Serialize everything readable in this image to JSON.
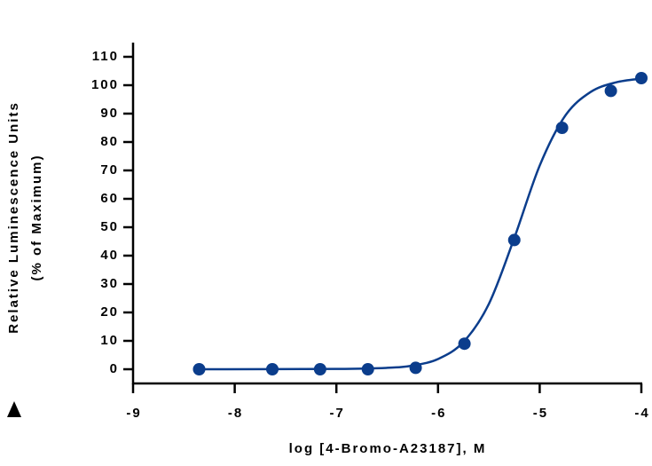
{
  "chart_data": {
    "type": "scatter",
    "x_label": "log [4-Bromo-A23187], M",
    "y_label": [
      "Relative Luminescence Units",
      "(% of Maximum)"
    ],
    "xlim": [
      -9,
      -4
    ],
    "xticks": [
      -9,
      -8,
      -7,
      -6,
      -5,
      -4
    ],
    "ylim": [
      -5,
      115
    ],
    "yticks": [
      0,
      10,
      20,
      30,
      40,
      50,
      60,
      70,
      80,
      90,
      100,
      110
    ],
    "series": [
      {
        "color": "#0b3d8c",
        "marker": true,
        "x": [
          -8.35,
          -7.63,
          -7.16,
          -6.69,
          -6.22,
          -5.74,
          -5.25,
          -4.78,
          -4.3,
          -4.0
        ],
        "values": [
          0,
          0,
          0,
          0,
          0.5,
          9,
          45.5,
          85,
          98,
          102.5
        ]
      },
      {
        "color": "#0b3d8c",
        "marker": false,
        "x": [
          -8.35,
          -7,
          -6.5,
          -6.25,
          -6.0,
          -5.75,
          -5.5,
          -5.25,
          -5.0,
          -4.75,
          -4.5,
          -4.25,
          -4.0
        ],
        "values": [
          0,
          0.1,
          0.5,
          1.3,
          3.6,
          9.6,
          23,
          46.2,
          71.7,
          89.2,
          97.6,
          101,
          102.3
        ]
      }
    ]
  }
}
